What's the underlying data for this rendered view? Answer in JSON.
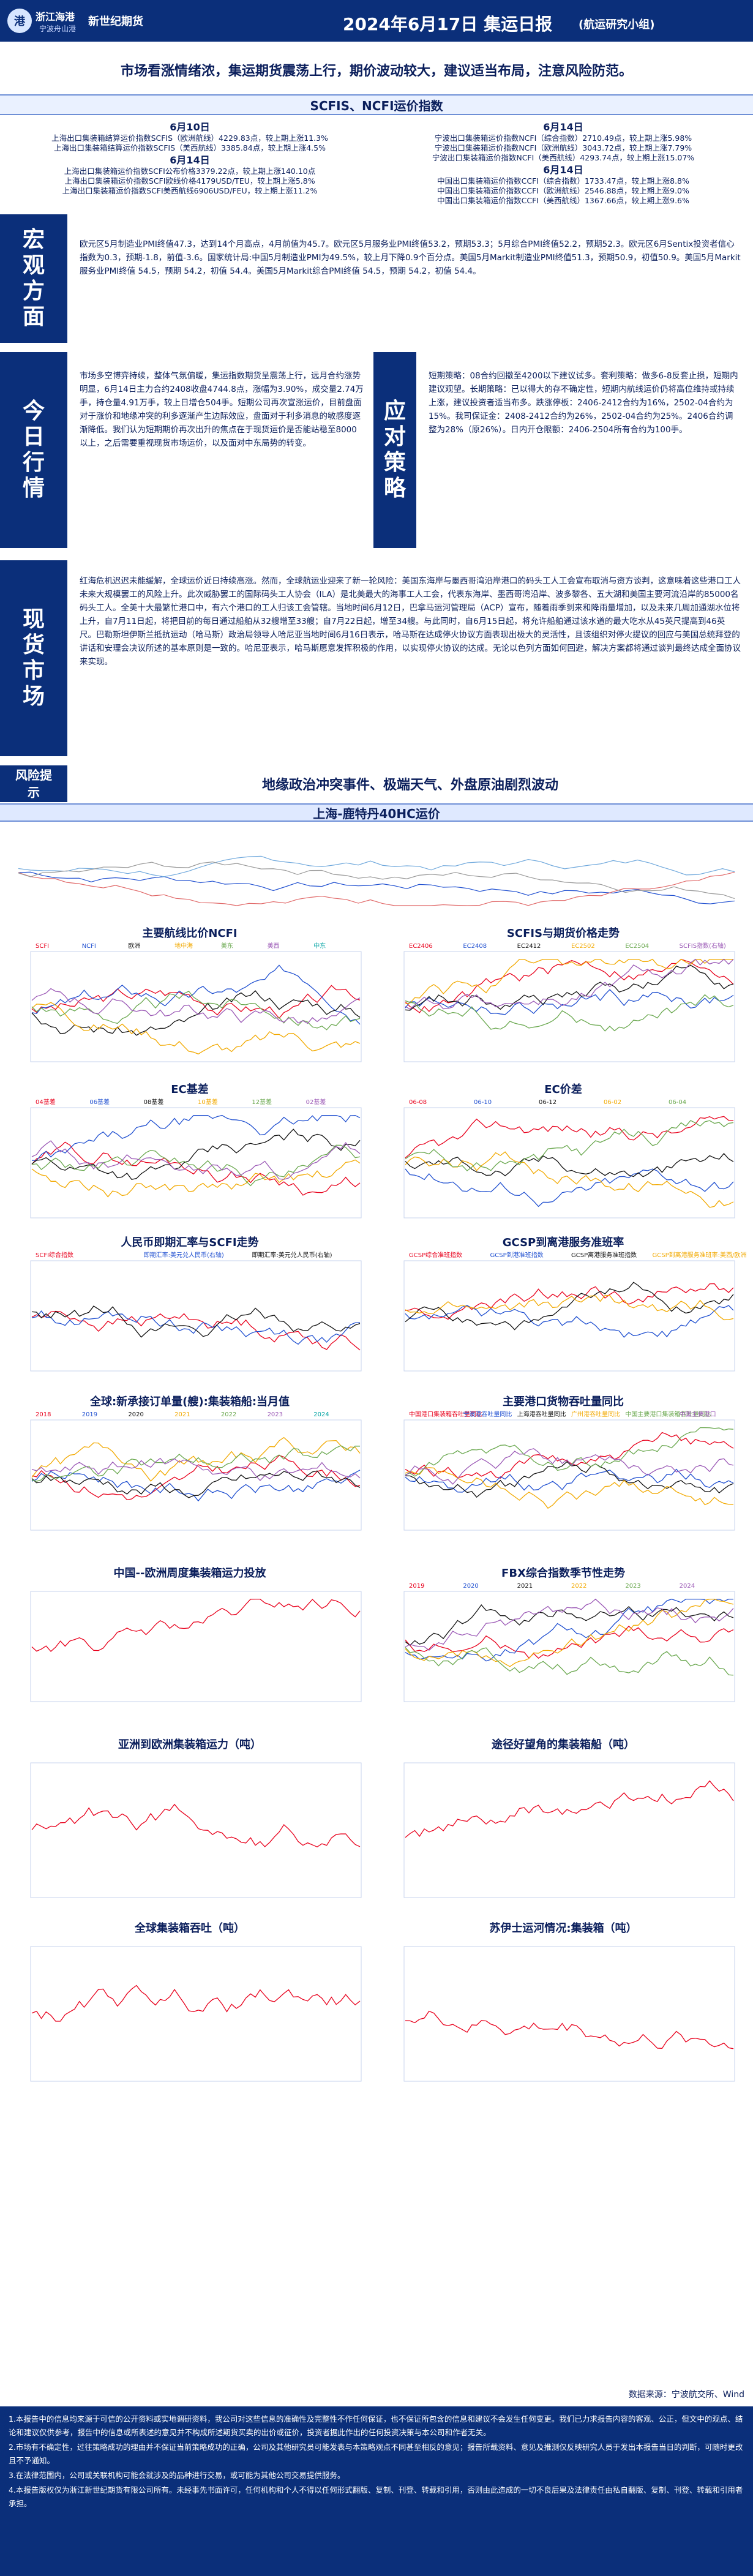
{
  "header": {
    "logo_company": "浙江海港",
    "logo_tag": "宁波舟山港",
    "logo_brand": "新世纪期货",
    "title": "2024年6月17日 集运日报",
    "subtitle": "(航运研究小组)"
  },
  "banner": "市场看涨情绪浓，集运期货震荡上行，期价波动较大，建议适当布局，注意风险防范。",
  "index_section": {
    "title": "SCFIS、NCFI运价指数",
    "left": {
      "date1": "6月10日",
      "rows1": [
        "上海出口集装箱结算运价指数SCFIS（欧洲航线）4229.83点，较上期上涨11.3%",
        "上海出口集装箱结算运价指数SCFIS（美西航线）3385.84点，较上期上涨4.5%"
      ],
      "date2": "6月14日",
      "rows2": [
        "上海出口集装箱运价指数SCFI公布价格3379.22点，较上期上涨140.10点",
        "上海出口集装箱运价指数SCFI欧线价格4179USD/TEU，较上期上涨5.8%",
        "上海出口集装箱运价指数SCFI美西航线6906USD/FEU，较上期上涨11.2%"
      ]
    },
    "right": {
      "date1": "6月14日",
      "rows1": [
        "宁波出口集装箱运价指数NCFI（综合指数）2710.49点，较上期上涨5.98%",
        "宁波出口集装箱运价指数NCFI（欧洲航线）3043.72点，较上期上涨7.79%",
        "宁波出口集装箱运价指数NCFI（美西航线）4293.74点，较上期上涨15.07%"
      ],
      "date2": "6月14日",
      "rows2": [
        "中国出口集装箱运价指数CCFI（综合指数）1733.47点，较上期上涨8.8%",
        "中国出口集装箱运价指数CCFI（欧洲航线）2546.88点，较上期上涨9.0%",
        "中国出口集装箱运价指数CCFI（美西航线）1367.66点，较上期上涨9.6%"
      ]
    }
  },
  "macro": {
    "label": "宏观方面",
    "text": "欧元区5月制造业PMI终值47.3，达到14个月高点，4月前值为45.7。欧元区5月服务业PMI终值53.2，预期53.3；5月综合PMI终值52.2，预期52.3。欧元区6月Sentix投资者信心指数为0.3，预期-1.8，前值-3.6。国家统计局:中国5月制造业PMI为49.5%，较上月下降0.9个百分点。美国5月Markit制造业PMI终值51.3，预期50.9，初值50.9。美国5月Markit服务业PMI终值 54.5，预期 54.2，初值 54.4。美国5月Markit综合PMI终值 54.5，预期 54.2，初值 54.4。"
  },
  "today": {
    "label": "今日行情",
    "text": "市场多空博弈持续，整体气氛偏暖，集运指数期货呈震荡上行，远月合约涨势明显，6月14日主力合约2408收盘4744.8点，涨幅为3.90%，成交量2.74万手，持仓量4.91万手，较上日增仓504手。短期公司再次宣涨运价，目前盘面对于涨价和地缘冲突的利多逐渐产生边际效应，盘面对于利多消息的敏感度逐渐降低。我们认为短期期价再次出升的焦点在于现货运价是否能站稳至8000以上，之后需要重视现货市场运价，以及面对中东局势的转变。"
  },
  "strategy": {
    "label": "应对策略",
    "text": "短期策略：08合约回撤至4200以下建议试多。套利策略：做多6-8反套止损，短期内建议观望。长期策略：已以得大的存不确定性，短期内航线运价仍将高位维持或持续上涨，建议投资者适当布多。跌涨停板：2406-2412合约为16%，2502-04合约为15%。我司保证金：2408-2412合约为26%，2502-04合约为25%。2406合约调整为28%（原26%）。日内开仓限额：2406-2504所有合约为100手。"
  },
  "spot": {
    "label": "现货市场",
    "text": "红海危机迟迟未能缓解，全球运价近日持续高涨。然而，全球航运业迎来了新一轮风险：美国东海岸与墨西哥湾沿岸港口的码头工人工会宣布取消与资方谈判，这意味着这些港口工人未来大规模罢工的风险上升。此次威胁罢工的国际码头工人协会（ILA）是北美最大的海事工人工会，代表东海岸、墨西哥湾沿岸、波多黎各、五大湖和美国主要河流沿岸的85000名码头工人。全美十大最繁忙港口中，有六个港口的工人归该工会管辖。当地时间6月12日，巴拿马运河管理局（ACP）宣布，随着雨季到来和降雨量增加，以及未来几周加通湖水位将上升，自7月11日起，将把目前的每日通过船舶从32艘增至33艘；自7月22日起，增至34艘。与此同时，自6月15日起，将允许船舶通过该水道的最大吃水从45英尺提高到46英尺。巴勒斯坦伊斯兰抵抗运动（哈马斯）政治局领导人哈尼亚当地时间6月16日表示，哈马斯在达成停火协议方面表现出极大的灵活性，且该组织对停火提议的回应与美国总统拜登的讲话和安理会决议所述的基本原则是一致的。哈尼亚表示，哈马斯愿意发挥积极的作用，以实现停火协议的达成。无论以色列方面如何回避，解决方案都将通过谈判最终达成全面协议来实现。"
  },
  "risk": {
    "label": "风险提示",
    "text": "地缘政治冲突事件、极端天气、外盘原油剧烈波动"
  },
  "charts": {
    "top_title": "上海-鹿特丹40HC运价",
    "c1_title": "主要航线比价NCFI",
    "c1_legend": [
      "SCFI",
      "NCFI",
      "欧洲",
      "地中海",
      "美东",
      "美西",
      "中东"
    ],
    "c2_title": "SCFIS与期货价格走势",
    "c2_legend": [
      "EC2406",
      "EC2408",
      "EC2412",
      "EC2502",
      "EC2504",
      "SCFIS指数(右轴)"
    ],
    "c3_title": "EC基差",
    "c3_legend": [
      "04基差",
      "06基差",
      "08基差",
      "10基差",
      "12基差",
      "02基差"
    ],
    "c4_title": "EC价差",
    "c4_legend": [
      "06-08",
      "06-10",
      "06-12",
      "06-02",
      "06-04"
    ],
    "c5_title": "人民币即期汇率与SCFI走势",
    "c5_legend": [
      "SCFI综合指数",
      "即期汇率:美元兑人民币(右轴)",
      "即期汇率:美元兑人民币(右轴)"
    ],
    "c6_title": "GCSP到离港服务准班率",
    "c6_legend": [
      "GCSP综合准班指数",
      "GCSP到港准班指数",
      "GCSP离港服务准班指数",
      "GCSP到离港服务准班率:美西/欧洲"
    ],
    "c7_title": "全球:新承接订单量(艘):集装箱船:当月值",
    "c7_legend": [
      "2018",
      "2019",
      "2020",
      "2021",
      "2022",
      "2023",
      "2024"
    ],
    "c8_title": "主要港口货物吞吐量同比",
    "c8_legend": [
      "中国港口集装箱吞吐量同比",
      "宁波港吞吐量同比",
      "上海港吞吐量同比",
      "广州港吞吐量同比",
      "中国主要港口集装箱吞吐量同比",
      "中国主要港口"
    ],
    "c9_title": "中国--欧洲周度集装箱运力投放",
    "c10_title": "FBX综合指数季节性走势",
    "c10_legend": [
      "2019",
      "2020",
      "2021",
      "2022",
      "2023",
      "2024"
    ],
    "c11_title": "亚洲到欧洲集装箱运力（吨）",
    "c12_title": "途径好望角的集装箱船（吨）",
    "c13_title": "全球集装箱吞吐（吨）",
    "c14_title": "苏伊士运河情况:集装箱（吨）"
  },
  "source": "数据来源：宁波航交所、Wind",
  "disclaimer": [
    "1.本报告中的信息均来源于可信的公开资料或实地调研资料，我公司对这些信息的准确性及完整性不作任何保证，也不保证所包含的信息和建议不会发生任何变更。我们已力求报告内容的客观、公正，但文中的观点、结论和建议仅供参考，报告中的信息或所表述的意见并不构成所述期货买卖的出价或征价，投资者据此作出的任何投资决策与本公司和作者无关。",
    "2.市场有不确定性，过往策略成功的理由并不保证当前策略成功的正确，公司及其他研究员可能发表与本策略观点不同甚至相反的意见；报告所载资料、意见及推测仅反映研究人员于发出本报告当日的判断，可随时更改且不予通知。",
    "3.在法律范围内，公司或关联机构可能会就涉及的品种进行交易，或可能为其他公司交易提供服务。",
    "4.本报告版权仅为浙江新世纪期货有限公司所有。未经事先书面许可，任何机构和个人不得以任何形式翻版、复制、刊登、转载和引用，否则由此造成的一切不良后果及法律责任由私自翻版、复制、刊登、转载和引用者承担。"
  ],
  "colors": {
    "navy": "#0b2f7a",
    "red": "#e8001c",
    "blue": "#1f4fd0",
    "black": "#111111"
  }
}
